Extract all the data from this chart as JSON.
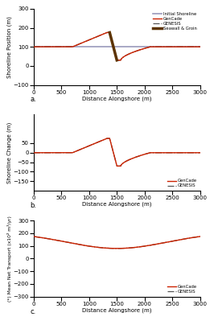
{
  "xlim": [
    0,
    3000
  ],
  "x_ticks": [
    0,
    500,
    1000,
    1500,
    2000,
    2500,
    3000
  ],
  "panel_a": {
    "ylabel": "Shoreline Position (m)",
    "ylim": [
      -100,
      300
    ],
    "y_ticks": [
      -100,
      0,
      100,
      200,
      300
    ],
    "label": "a.",
    "legend": [
      "Initial Shoreline",
      "GenCade",
      "GENESIS",
      "Seawall & Groin"
    ]
  },
  "panel_b": {
    "ylabel": "Shoreline Change (m)",
    "ylim": [
      -200,
      200
    ],
    "y_ticks": [
      -150,
      -100,
      -50,
      0,
      50
    ],
    "label": "b.",
    "legend": [
      "GenCade",
      "GENESIS"
    ]
  },
  "panel_c": {
    "ylabel": "(*) Mean Net Transport (x10² m³/yr)",
    "ylim": [
      -300,
      300
    ],
    "y_ticks": [
      -300,
      -200,
      -100,
      0,
      100,
      200,
      300
    ],
    "label": "c.",
    "legend": [
      "GenCade",
      "GENESIS"
    ]
  },
  "color_gencade": "#cc2200",
  "color_genesis": "#555555",
  "color_initial": "#9999bb",
  "color_seawall": "#5c3300",
  "background": "#ffffff"
}
